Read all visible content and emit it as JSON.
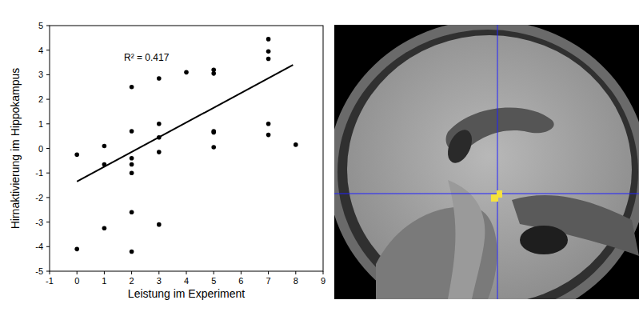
{
  "chart_data": {
    "type": "scatter",
    "x_label": "Leistung im Experiment",
    "y_label": "Hirnaktivierung im Hippokampus",
    "annotations": [
      "R² = 0.417"
    ],
    "xlim": [
      -1,
      9
    ],
    "xticks": [
      -1,
      0,
      1,
      2,
      3,
      4,
      5,
      6,
      7,
      8,
      9
    ],
    "ylim": [
      -5,
      5
    ],
    "yticks": [
      -5,
      -4,
      -3,
      -2,
      -1,
      0,
      1,
      2,
      3,
      4,
      5
    ],
    "grid": false,
    "series": [
      {
        "type": "scatter",
        "color": "#000000",
        "marker": "circle",
        "x": [
          0,
          0,
          1,
          1,
          1,
          2,
          2,
          2,
          2,
          2,
          2,
          2,
          3,
          3,
          3,
          3,
          3,
          4,
          5,
          5,
          5,
          5,
          5,
          7,
          7,
          7,
          7,
          7,
          8
        ],
        "values": [
          -0.25,
          -4.1,
          0.1,
          -0.65,
          -3.25,
          2.5,
          0.7,
          -0.4,
          -0.65,
          -1.0,
          -2.6,
          -4.2,
          2.85,
          1.0,
          0.45,
          -0.15,
          -3.1,
          3.1,
          3.2,
          3.05,
          0.7,
          0.65,
          0.05,
          4.45,
          3.95,
          3.65,
          1.0,
          0.55,
          0.15
        ]
      },
      {
        "type": "line",
        "color": "#000000",
        "line_style": "solid",
        "x": [
          0,
          7.9
        ],
        "values": [
          -1.35,
          3.4
        ]
      }
    ]
  }
}
